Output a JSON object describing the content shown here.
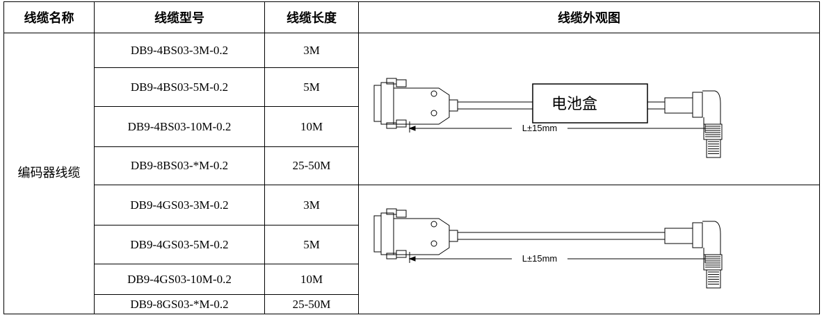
{
  "table": {
    "header": [
      "线缆名称",
      "线缆型号",
      "线缆长度",
      "线缆外观图"
    ],
    "cable_name": "编码器线缆",
    "rows": [
      [
        "DB9-4BS03-3M-0.2",
        "3M"
      ],
      [
        "DB9-4BS03-5M-0.2",
        "5M"
      ],
      [
        "DB9-4BS03-10M-0.2",
        "10M"
      ],
      [
        "DB9-8BS03-*M-0.2",
        "25-50M"
      ],
      [
        "DB9-4GS03-3M-0.2",
        "3M"
      ],
      [
        "DB9-4GS03-5M-0.2",
        "5M"
      ],
      [
        "DB9-4GS03-10M-0.2",
        "10M"
      ],
      [
        "DB9-8GS03-*M-0.2",
        "25-50M"
      ]
    ],
    "drawings": [
      {
        "box_label": "电池盒",
        "length_label": "L±15mm"
      },
      {
        "length_label": "L±15mm"
      }
    ]
  }
}
